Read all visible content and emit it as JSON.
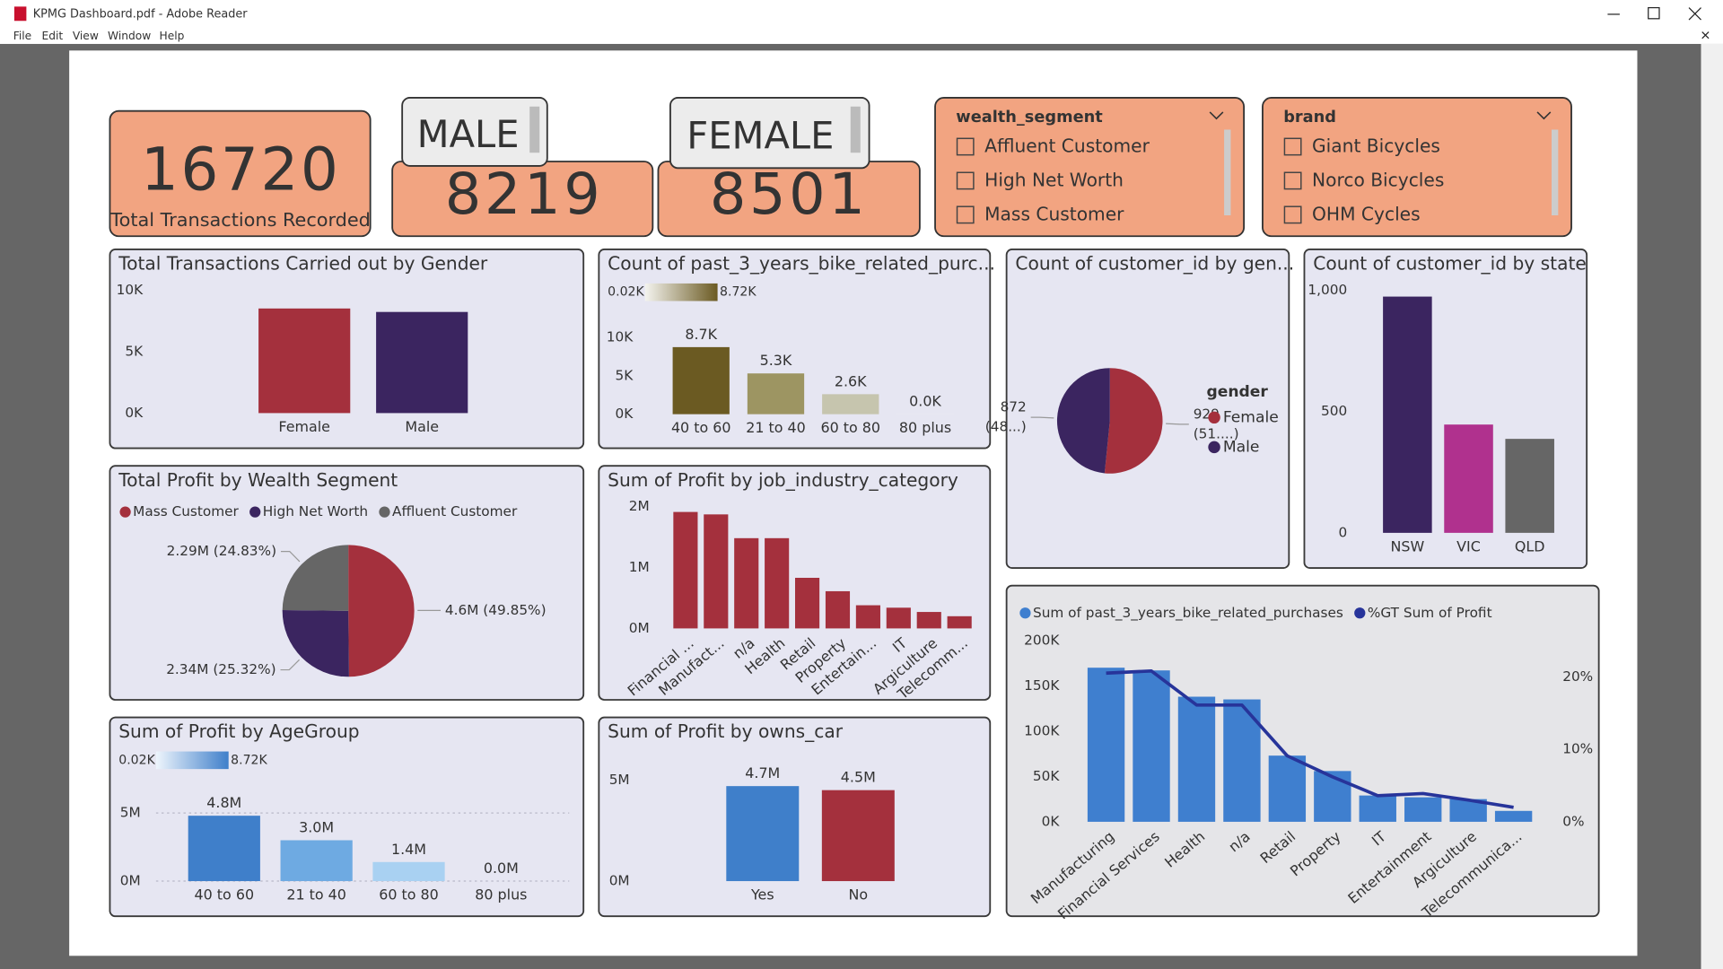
{
  "window": {
    "title": "KPMG Dashboard.pdf - Adobe Reader",
    "menu": [
      "File",
      "Edit",
      "View",
      "Window",
      "Help"
    ]
  },
  "kpis": [
    {
      "value": 16720,
      "label": "Total Transactions Recorded"
    },
    {
      "title": "MALE",
      "value": 8219
    },
    {
      "title": "FEMALE",
      "value": 8501
    }
  ],
  "slicers": [
    {
      "title": "wealth_segment",
      "items": [
        "Affluent Customer",
        "High Net Worth",
        "Mass Customer"
      ]
    },
    {
      "title": "brand",
      "items": [
        "Giant Bicycles",
        "Norco Bicycles",
        "OHM Cycles"
      ]
    }
  ],
  "chart_data": [
    {
      "type": "bar",
      "title": "Total Transactions Carried out by Gender",
      "categories": [
        "Female",
        "Male"
      ],
      "values": [
        8501,
        8219
      ],
      "colors": [
        "#a4303d",
        "#3b2560"
      ],
      "ylim": [
        0,
        10000
      ],
      "yticks": [
        {
          "value": 0,
          "label": "0K"
        },
        {
          "value": 5000,
          "label": "5K"
        },
        {
          "value": 10000,
          "label": "10K"
        }
      ],
      "grid": false
    },
    {
      "type": "bar",
      "title": "Count of past_3_years_bike_related_purc...",
      "categories": [
        "40 to 60",
        "21 to 40",
        "60 to 80",
        "80 plus"
      ],
      "values": [
        8720,
        5300,
        2600,
        20
      ],
      "value_labels": [
        "8.7K",
        "5.3K",
        "2.6K",
        "0.0K"
      ],
      "colors": [
        "#6b5a22",
        "#9d9562",
        "#c6c5ae",
        "#f4f4ef"
      ],
      "color_scale": {
        "labels": [
          {
            "value": 20,
            "label": "0.02K"
          },
          {
            "value": 8720,
            "label": "8.72K"
          }
        ],
        "colors": [
          "#f4f4ef",
          "#6b5a22"
        ]
      },
      "ylim": [
        0,
        10000
      ],
      "yticks": [
        {
          "value": 0,
          "label": "0K"
        },
        {
          "value": 5000,
          "label": "5K"
        },
        {
          "value": 10000,
          "label": "10K"
        }
      ],
      "grid": false
    },
    {
      "type": "pie",
      "title": "Count of customer_id by gen...",
      "legend_title": "gender",
      "categories": [
        "Female",
        "Male"
      ],
      "values": [
        929,
        872
      ],
      "percent_labels": [
        "(51....)",
        "(48...)"
      ],
      "colors": [
        "#a4303d",
        "#3b2560"
      ],
      "legend": "right"
    },
    {
      "type": "bar",
      "title": "Count of customer_id by state",
      "categories": [
        "NSW",
        "VIC",
        "QLD"
      ],
      "values": [
        973,
        446,
        387
      ],
      "colors": [
        "#3b2560",
        "#b0318e",
        "#666666"
      ],
      "ylim": [
        0,
        1000
      ],
      "yticks": [
        0,
        500,
        {
          "value": 1000,
          "label": "1,000"
        }
      ],
      "grid": false
    },
    {
      "type": "pie",
      "title": "Total Profit by Wealth Segment",
      "categories": [
        "Mass Customer",
        "High Net Worth",
        "Affluent Customer"
      ],
      "values": [
        4600000,
        2340000,
        2290000
      ],
      "value_labels": [
        "4.6M (49.85%)",
        "2.34M (25.32%)",
        "2.29M (24.83%)"
      ],
      "colors": [
        "#a4303d",
        "#3b2560",
        "#666666"
      ],
      "legend": "top-left"
    },
    {
      "type": "bar",
      "title": "Sum of Profit by job_industry_category",
      "categories": [
        "Financial ...",
        "Manufact...",
        "n/a",
        "Health",
        "Retail",
        "Property",
        "Entertain...",
        "IT",
        "Argiculture",
        "Telecomm..."
      ],
      "values": [
        1910000,
        1870000,
        1480000,
        1480000,
        830000,
        610000,
        380000,
        340000,
        270000,
        200000
      ],
      "color": "#a4303d",
      "ylim": [
        0,
        2000000
      ],
      "yticks": [
        {
          "value": 0,
          "label": "0M"
        },
        {
          "value": 1000000,
          "label": "1M"
        },
        {
          "value": 2000000,
          "label": "2M"
        }
      ],
      "grid": false
    },
    {
      "type": "bar",
      "title": "Sum of Profit by AgeGroup",
      "categories": [
        "40 to 60",
        "21 to 40",
        "60 to 80",
        "80 plus"
      ],
      "values": [
        4800000,
        3000000,
        1400000,
        0
      ],
      "value_labels": [
        "4.8M",
        "3.0M",
        "1.4M",
        "0.0M"
      ],
      "colors": [
        "#3f7fca",
        "#6eaae2",
        "#a9d1f2",
        "#eef5fc"
      ],
      "color_scale": {
        "labels": [
          {
            "value": 20,
            "label": "0.02K"
          },
          {
            "value": 8720,
            "label": "8.72K"
          }
        ],
        "colors": [
          "#eef5fc",
          "#3f7fca"
        ]
      },
      "ylim": [
        0,
        5000000
      ],
      "yticks": [
        {
          "value": 0,
          "label": "0M"
        },
        {
          "value": 5000000,
          "label": "5M"
        }
      ],
      "grid": true
    },
    {
      "type": "bar",
      "title": "Sum of Profit by owns_car",
      "categories": [
        "Yes",
        "No"
      ],
      "values": [
        4700000,
        4500000
      ],
      "value_labels": [
        "4.7M",
        "4.5M"
      ],
      "colors": [
        "#3f7fca",
        "#a4303d"
      ],
      "ylim": [
        0,
        5000000
      ],
      "yticks": [
        {
          "value": 0,
          "label": "0M"
        },
        {
          "value": 5000000,
          "label": "5M"
        }
      ],
      "grid": false
    },
    {
      "type": "combo",
      "legend": "top",
      "categories": [
        "Manufacturing",
        "Financial Services",
        "Health",
        "n/a",
        "Retail",
        "Property",
        "IT",
        "Entertainment",
        "Argiculture",
        "Telecommunica..."
      ],
      "series": [
        {
          "name": "Sum of past_3_years_bike_related_purchases",
          "color": "#3f7fcf",
          "values": [
            170000,
            167000,
            138000,
            135000,
            73000,
            56000,
            29000,
            27000,
            25000,
            12000
          ]
        },
        {
          "name": "%GT Sum of Profit",
          "color": "#27349a",
          "axis": "y2",
          "values": [
            20.5,
            20.8,
            16.1,
            16.1,
            9.1,
            6.2,
            3.6,
            3.9,
            3.0,
            2.0
          ]
        }
      ],
      "ylim": [
        0,
        200000
      ],
      "yticks": [
        {
          "value": 0,
          "label": "0K"
        },
        {
          "value": 50000,
          "label": "50K"
        },
        {
          "value": 100000,
          "label": "100K"
        },
        {
          "value": 150000,
          "label": "150K"
        },
        {
          "value": 200000,
          "label": "200K"
        }
      ],
      "y2lim": [
        0,
        25
      ],
      "y2ticks": [
        {
          "value": 0,
          "label": "0%"
        },
        {
          "value": 10,
          "label": "10%"
        },
        {
          "value": 20,
          "label": "20%"
        }
      ],
      "grid": false
    }
  ]
}
